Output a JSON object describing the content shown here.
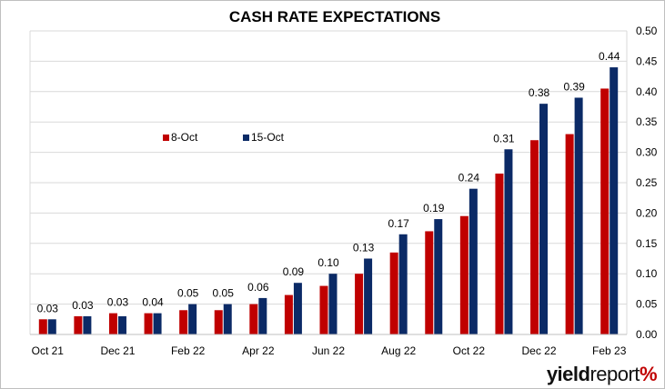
{
  "chart_data": {
    "type": "bar",
    "title": "CASH RATE EXPECTATIONS",
    "xlabel": "",
    "ylabel": "",
    "ylim": [
      0,
      0.5
    ],
    "y_ticks": [
      "0.00",
      "0.05",
      "0.10",
      "0.15",
      "0.20",
      "0.25",
      "0.30",
      "0.35",
      "0.40",
      "0.45",
      "0.50"
    ],
    "y_axis_side": "right",
    "grid": true,
    "legend_position": "upper-left",
    "categories": [
      "Oct 21",
      "Nov 21",
      "Dec 21",
      "Jan 22",
      "Feb 22",
      "Mar 22",
      "Apr 22",
      "May 22",
      "Jun 22",
      "Jul 22",
      "Aug 22",
      "Sep 22",
      "Oct 22",
      "Nov 22",
      "Dec 22",
      "Jan 23",
      "Feb 23"
    ],
    "x_tick_labels": [
      "Oct 21",
      "",
      "Dec 21",
      "",
      "Feb 22",
      "",
      "Apr 22",
      "",
      "Jun 22",
      "",
      "Aug 22",
      "",
      "Oct 22",
      "",
      "Dec 22",
      "",
      "Feb 23"
    ],
    "series": [
      {
        "name": "8-Oct",
        "color": "#c00000",
        "values": [
          0.025,
          0.03,
          0.035,
          0.035,
          0.04,
          0.04,
          0.05,
          0.065,
          0.08,
          0.1,
          0.135,
          0.17,
          0.195,
          0.265,
          0.32,
          0.33,
          0.405
        ]
      },
      {
        "name": "15-Oct",
        "color": "#0b2a66",
        "values": [
          0.025,
          0.03,
          0.03,
          0.035,
          0.05,
          0.05,
          0.06,
          0.085,
          0.1,
          0.125,
          0.165,
          0.19,
          0.24,
          0.305,
          0.38,
          0.39,
          0.44
        ]
      }
    ],
    "data_labels": [
      "0.03",
      "0.03",
      "0.03",
      "0.04",
      "0.05",
      "0.05",
      "0.06",
      "0.09",
      "0.10",
      "0.13",
      "0.17",
      "0.19",
      "0.24",
      "0.31",
      "0.38",
      "0.39",
      "0.44"
    ]
  },
  "branding": {
    "part1": "yield",
    "part2": "report",
    "part3": "%"
  }
}
